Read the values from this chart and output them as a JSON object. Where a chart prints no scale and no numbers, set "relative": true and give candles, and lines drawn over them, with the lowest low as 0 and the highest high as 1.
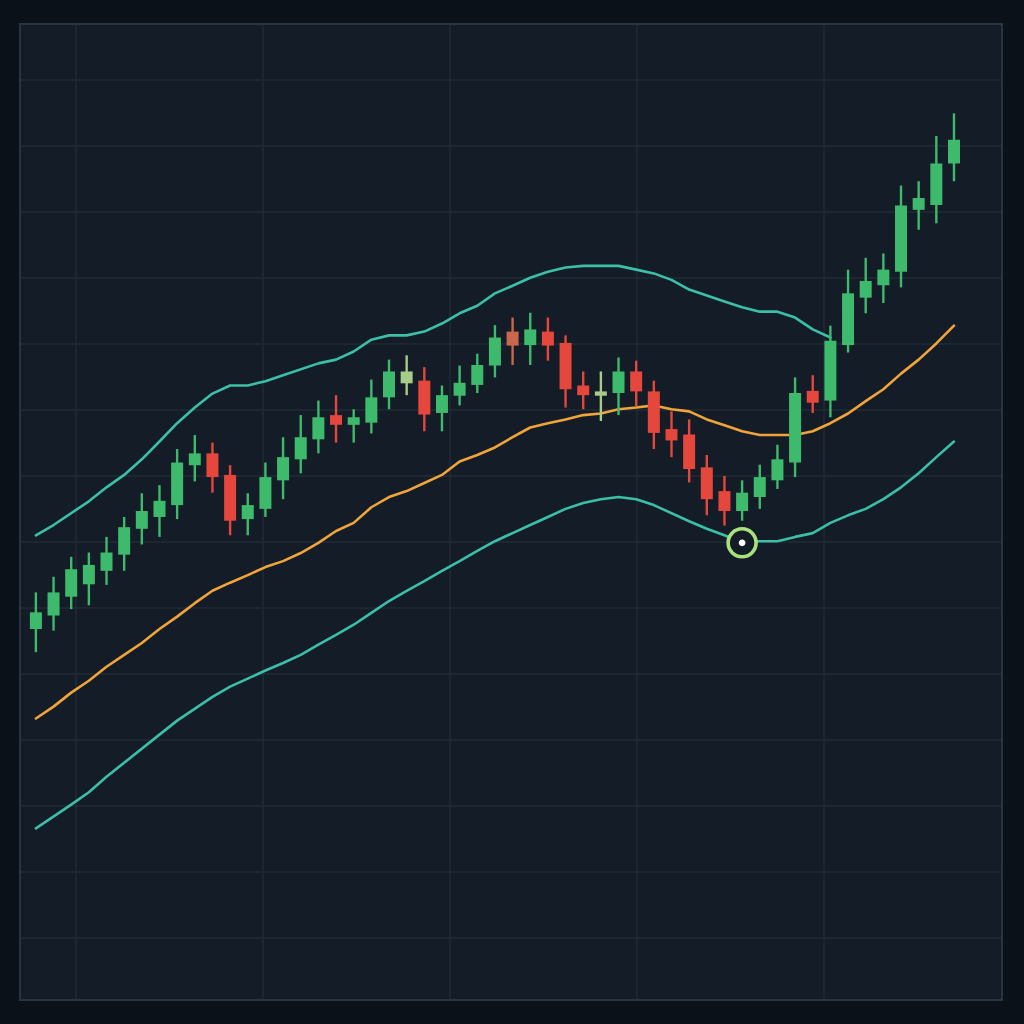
{
  "chart_data": {
    "type": "candlestick",
    "relative": true,
    "grid": true,
    "categories": [
      null,
      null,
      null,
      null,
      null,
      null,
      null,
      null,
      null,
      null,
      null,
      null,
      null,
      null,
      null,
      null,
      null,
      null,
      null,
      null,
      null,
      null,
      null,
      null,
      null,
      null,
      null,
      null,
      null,
      null,
      null,
      null,
      null,
      null,
      null,
      null,
      null,
      null,
      null,
      null,
      null,
      null,
      null,
      null,
      null,
      null,
      null,
      null,
      null,
      null,
      null,
      null,
      null
    ],
    "ohlc": [
      [
        0.043,
        0.111,
        0,
        0.074
      ],
      [
        0.068,
        0.14,
        0.04,
        0.111
      ],
      [
        0.103,
        0.177,
        0.08,
        0.154
      ],
      [
        0.126,
        0.185,
        0.087,
        0.162
      ],
      [
        0.151,
        0.214,
        0.125,
        0.185
      ],
      [
        0.181,
        0.251,
        0.151,
        0.232
      ],
      [
        0.229,
        0.295,
        0.2,
        0.262
      ],
      [
        0.251,
        0.31,
        0.214,
        0.281
      ],
      [
        0.273,
        0.377,
        0.247,
        0.352
      ],
      [
        0.347,
        0.403,
        0.317,
        0.369
      ],
      [
        0.369,
        0.389,
        0.296,
        0.325
      ],
      [
        0.329,
        0.347,
        0.217,
        0.244
      ],
      [
        0.247,
        0.295,
        0.217,
        0.273
      ],
      [
        0.266,
        0.352,
        0.251,
        0.325
      ],
      [
        0.319,
        0.399,
        0.284,
        0.362
      ],
      [
        0.358,
        0.44,
        0.332,
        0.399
      ],
      [
        0.395,
        0.467,
        0.369,
        0.436
      ],
      [
        0.44,
        0.477,
        0.389,
        0.422
      ],
      [
        0.422,
        0.451,
        0.389,
        0.436
      ],
      [
        0.426,
        0.506,
        0.406,
        0.473
      ],
      [
        0.473,
        0.543,
        0.451,
        0.521
      ],
      [
        0.499,
        0.551,
        0.477,
        0.521
      ],
      [
        0.504,
        0.529,
        0.41,
        0.441
      ],
      [
        0.444,
        0.495,
        0.41,
        0.477
      ],
      [
        0.476,
        0.532,
        0.458,
        0.5
      ],
      [
        0.496,
        0.554,
        0.481,
        0.533
      ],
      [
        0.532,
        0.607,
        0.51,
        0.584
      ],
      [
        0.595,
        0.621,
        0.533,
        0.569
      ],
      [
        0.57,
        0.63,
        0.533,
        0.599
      ],
      [
        0.595,
        0.621,
        0.541,
        0.569
      ],
      [
        0.574,
        0.588,
        0.454,
        0.488
      ],
      [
        0.495,
        0.521,
        0.451,
        0.477
      ],
      [
        0.476,
        0.521,
        0.429,
        0.484
      ],
      [
        0.481,
        0.547,
        0.44,
        0.521
      ],
      [
        0.521,
        0.541,
        0.457,
        0.484
      ],
      [
        0.484,
        0.504,
        0.377,
        0.407
      ],
      [
        0.414,
        0.447,
        0.362,
        0.393
      ],
      [
        0.404,
        0.432,
        0.315,
        0.34
      ],
      [
        0.343,
        0.366,
        0.254,
        0.284
      ],
      [
        0.299,
        0.327,
        0.235,
        0.262
      ],
      [
        0.262,
        0.319,
        0.244,
        0.296
      ],
      [
        0.288,
        0.348,
        0.266,
        0.325
      ],
      [
        0.319,
        0.385,
        0.303,
        0.358
      ],
      [
        0.352,
        0.51,
        0.325,
        0.481
      ],
      [
        0.485,
        0.514,
        0.444,
        0.463
      ],
      [
        0.467,
        0.606,
        0.436,
        0.578
      ],
      [
        0.57,
        0.71,
        0.556,
        0.666
      ],
      [
        0.658,
        0.732,
        0.629,
        0.689
      ],
      [
        0.681,
        0.74,
        0.648,
        0.71
      ],
      [
        0.706,
        0.866,
        0.677,
        0.829
      ],
      [
        0.821,
        0.874,
        0.784,
        0.843
      ],
      [
        0.83,
        0.958,
        0.796,
        0.907
      ],
      [
        0.907,
        1,
        0.874,
        0.951
      ]
    ],
    "colors": [
      "#3dba6c",
      "#3dba6c",
      "#3dba6c",
      "#3dba6c",
      "#3dba6c",
      "#3dba6c",
      "#3dba6c",
      "#3dba6c",
      "#3dba6c",
      "#3dba6c",
      "#e5473d",
      "#e5473d",
      "#3dba6c",
      "#3dba6c",
      "#3dba6c",
      "#3dba6c",
      "#3dba6c",
      "#e5473d",
      "#3dba6c",
      "#3dba6c",
      "#3dba6c",
      "#a6cc88",
      "#e5473d",
      "#3dba6c",
      "#3dba6c",
      "#3dba6c",
      "#3dba6c",
      "#c8674c",
      "#3dba6c",
      "#e5473d",
      "#e5473d",
      "#e5473d",
      "#a6cc88",
      "#3dba6c",
      "#e5473d",
      "#e5473d",
      "#e5473d",
      "#e5473d",
      "#e5473d",
      "#e5473d",
      "#3dba6c",
      "#3dba6c",
      "#3dba6c",
      "#3dba6c",
      "#e5473d",
      "#3dba6c",
      "#3dba6c",
      "#3dba6c",
      "#3dba6c",
      "#3dba6c",
      "#3dba6c",
      "#3dba6c",
      "#3dba6c"
    ],
    "series": [
      {
        "type": "line",
        "color": "#3cbfa8",
        "values": [
          0.217,
          0.236,
          0.258,
          0.28,
          0.306,
          0.329,
          0.358,
          0.391,
          0.425,
          0.454,
          0.48,
          0.495,
          0.495,
          0.503,
          0.514,
          0.525,
          0.536,
          0.543,
          0.558,
          0.58,
          0.588,
          0.588,
          0.595,
          0.61,
          0.629,
          0.643,
          0.666,
          0.68,
          0.695,
          0.706,
          0.714,
          0.717,
          0.717,
          0.717,
          0.71,
          0.703,
          0.691,
          0.673,
          0.662,
          0.651,
          0.64,
          0.632,
          0.632,
          0.621,
          0.599,
          0.584,
          null,
          null,
          null,
          null,
          null,
          null,
          null
        ]
      },
      {
        "type": "line",
        "color": "#f0a43a",
        "values": [
          -0.123,
          -0.101,
          -0.075,
          -0.053,
          -0.027,
          -0.005,
          0.017,
          0.043,
          0.066,
          0.091,
          0.114,
          0.129,
          0.143,
          0.158,
          0.169,
          0.184,
          0.203,
          0.225,
          0.24,
          0.269,
          0.288,
          0.299,
          0.314,
          0.329,
          0.354,
          0.366,
          0.38,
          0.399,
          0.417,
          0.425,
          0.432,
          0.44,
          0.443,
          0.451,
          0.454,
          0.458,
          0.451,
          0.447,
          0.432,
          0.421,
          0.41,
          0.403,
          0.403,
          0.403,
          0.41,
          0.425,
          0.443,
          0.466,
          0.488,
          0.517,
          0.543,
          0.573,
          0.606
        ]
      },
      {
        "type": "line",
        "color": "#3cbfa8",
        "values": [
          -0.327,
          -0.305,
          -0.283,
          -0.26,
          -0.231,
          -0.205,
          -0.179,
          -0.153,
          -0.127,
          -0.105,
          -0.083,
          -0.064,
          -0.049,
          -0.034,
          -0.02,
          -0.005,
          0.014,
          0.032,
          0.051,
          0.073,
          0.095,
          0.114,
          0.132,
          0.151,
          0.169,
          0.188,
          0.206,
          0.221,
          0.236,
          0.251,
          0.266,
          0.277,
          0.284,
          0.288,
          0.284,
          0.273,
          0.258,
          0.243,
          0.229,
          0.217,
          0.203,
          0.206,
          0.206,
          0.214,
          0.221,
          0.24,
          0.254,
          0.266,
          0.284,
          0.306,
          0.332,
          0.362,
          0.391
        ]
      },
      {
        "type": "scatter",
        "marker": "circle",
        "color": "#a9e27c",
        "values": [
          null,
          null,
          null,
          null,
          null,
          null,
          null,
          null,
          null,
          null,
          null,
          null,
          null,
          null,
          null,
          null,
          null,
          null,
          null,
          null,
          null,
          null,
          null,
          null,
          null,
          null,
          null,
          null,
          null,
          null,
          null,
          null,
          null,
          null,
          null,
          null,
          null,
          null,
          null,
          null,
          0.203,
          null,
          null,
          null,
          null,
          null,
          null,
          null,
          null,
          null,
          null,
          null,
          null
        ]
      }
    ]
  }
}
